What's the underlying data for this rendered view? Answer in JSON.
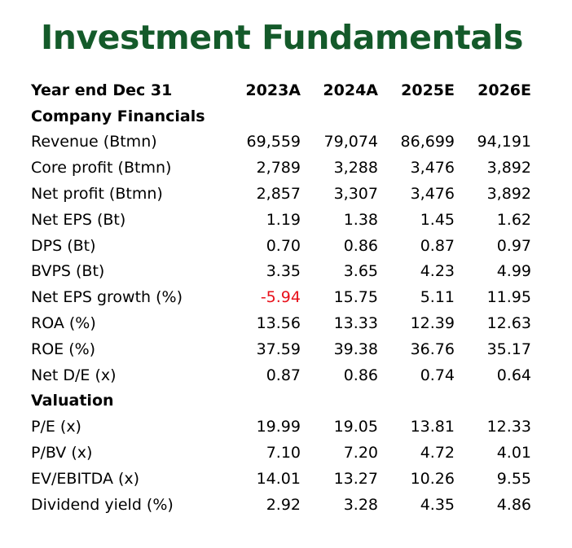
{
  "title": "Investment Fundamentals",
  "header": {
    "label": "Year end Dec 31",
    "years": [
      "2023A",
      "2024A",
      "2025E",
      "2026E"
    ]
  },
  "sections": [
    {
      "title": "Company Financials",
      "rows": [
        {
          "label": "Revenue (Btmn)",
          "values": [
            "69,559",
            "79,074",
            "86,699",
            "94,191"
          ]
        },
        {
          "label": "Core profit (Btmn)",
          "values": [
            "2,789",
            "3,288",
            "3,476",
            "3,892"
          ]
        },
        {
          "label": "Net profit (Btmn)",
          "values": [
            "2,857",
            "3,307",
            "3,476",
            "3,892"
          ]
        },
        {
          "label": "Net EPS (Bt)",
          "values": [
            "1.19",
            "1.38",
            "1.45",
            "1.62"
          ]
        },
        {
          "label": "DPS (Bt)",
          "values": [
            "0.70",
            "0.86",
            "0.87",
            "0.97"
          ]
        },
        {
          "label": "BVPS (Bt)",
          "values": [
            "3.35",
            "3.65",
            "4.23",
            "4.99"
          ]
        },
        {
          "label": "Net EPS growth (%)",
          "values": [
            "-5.94",
            "15.75",
            "5.11",
            "11.95"
          ]
        },
        {
          "label": "ROA (%)",
          "values": [
            "13.56",
            "13.33",
            "12.39",
            "12.63"
          ]
        },
        {
          "label": "ROE (%)",
          "values": [
            "37.59",
            "39.38",
            "36.76",
            "35.17"
          ]
        },
        {
          "label": "Net D/E (x)",
          "values": [
            "0.87",
            "0.86",
            "0.74",
            "0.64"
          ]
        }
      ]
    },
    {
      "title": "Valuation",
      "rows": [
        {
          "label": "P/E (x)",
          "values": [
            "19.99",
            "19.05",
            "13.81",
            "12.33"
          ]
        },
        {
          "label": "P/BV (x)",
          "values": [
            "7.10",
            "7.20",
            "4.72",
            "4.01"
          ]
        },
        {
          "label": "EV/EBITDA (x)",
          "values": [
            "14.01",
            "13.27",
            "10.26",
            "9.55"
          ]
        },
        {
          "label": "Dividend yield (%)",
          "values": [
            "2.92",
            "3.28",
            "4.35",
            "4.86"
          ]
        }
      ]
    }
  ],
  "colors": {
    "title": "#145a2a",
    "negative": "#e8101a"
  }
}
